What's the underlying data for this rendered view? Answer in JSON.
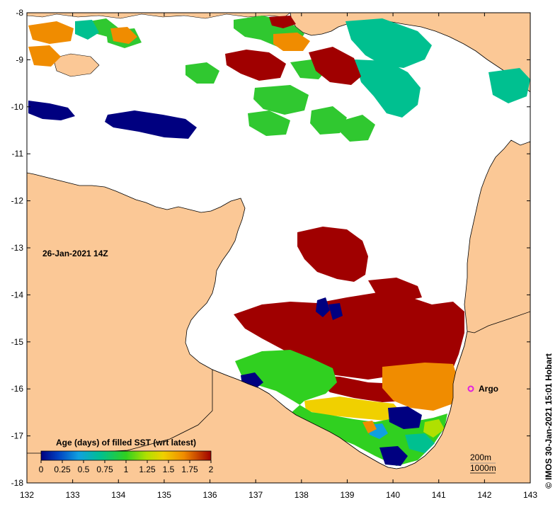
{
  "map": {
    "timestamp": "26-Jan-2021 14Z",
    "lon_ticks": [
      "132",
      "133",
      "134",
      "135",
      "136",
      "137",
      "138",
      "139",
      "140",
      "141",
      "142",
      "143"
    ],
    "lat_ticks": [
      "-8",
      "-9",
      "-10",
      "-11",
      "-12",
      "-13",
      "-14",
      "-15",
      "-16",
      "-17",
      "-18"
    ],
    "argo_label": "Argo",
    "depth_contours": [
      "200m",
      "1000m"
    ],
    "colors": {
      "land": "#fbc896",
      "no_data": "#ffffff",
      "coast": "#000000",
      "argo_marker": "#e020e0"
    }
  },
  "colorbar": {
    "title": "Age (days) of filled SST (wrt latest)",
    "tick_labels": [
      "0",
      "0.25",
      "0.5",
      "0.75",
      "1",
      "1.25",
      "1.5",
      "1.75",
      "2"
    ],
    "colors": [
      "#000080",
      "#0050d0",
      "#10b0e0",
      "#00c090",
      "#30d020",
      "#b0e000",
      "#f0d000",
      "#f08c00",
      "#a00000"
    ]
  },
  "credit": "© IMOS 30-Jan-2021 15:01 Hobart"
}
